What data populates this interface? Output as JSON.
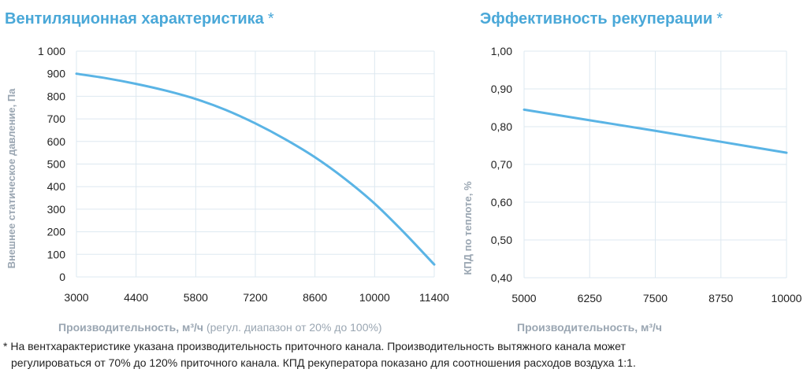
{
  "charts": {
    "left": {
      "title": "Вентиляционная характеристика",
      "asterisk": "*",
      "xlabel_bold": "Производительность",
      "xlabel_unit": ", м³/ч",
      "xlabel_note": " (регул. диапазон от 20% до 100%)",
      "ylabel": "Внешнее статическое давление, Па"
    },
    "right": {
      "title": "Эффективность рекуперации",
      "asterisk": "*",
      "xlabel_bold": "Производительность",
      "xlabel_unit": ", м³/ч",
      "ylabel": "КПД по теплоте, %"
    }
  },
  "footnote": {
    "line1": "* На вентхарактеристике указана производительность приточного канала. Производительность вытяжного канала может",
    "line2": "регулироваться от 70% до 120% приточного канала. КПД рекуператора показано для соотношения расходов воздуха 1:1."
  },
  "colors": {
    "title": "#4aa8d8",
    "series": "#5ab4e5",
    "grid": "#dde8f0",
    "axis_label": "#9aa6b2"
  },
  "chart_data": [
    {
      "type": "line",
      "title": "Вентиляционная характеристика",
      "xlabel": "Производительность, м³/ч (регул. диапазон от 20% до 100%)",
      "ylabel": "Внешнее статическое давление, Па",
      "xlim": [
        3000,
        11400
      ],
      "ylim": [
        0,
        1000
      ],
      "x_ticks": [
        3000,
        4400,
        5800,
        7200,
        8600,
        10000,
        11400
      ],
      "x_tick_labels": [
        "3000",
        "4400",
        "5800",
        "7200",
        "8600",
        "10000",
        "11400"
      ],
      "y_ticks": [
        0,
        100,
        200,
        300,
        400,
        500,
        600,
        700,
        800,
        900,
        1000
      ],
      "y_tick_labels": [
        "0",
        "100",
        "200",
        "300",
        "400",
        "500",
        "600",
        "700",
        "800",
        "900",
        "1 000"
      ],
      "grid": true,
      "series": [
        {
          "x": [
            3000,
            3700,
            4400,
            5100,
            5800,
            6500,
            7200,
            7900,
            8600,
            9300,
            10000,
            10700,
            11400
          ],
          "y": [
            900,
            880,
            855,
            825,
            788,
            740,
            680,
            610,
            530,
            435,
            325,
            195,
            55
          ]
        }
      ]
    },
    {
      "type": "line",
      "title": "Эффективность рекуперации",
      "xlabel": "Производительность, м³/ч",
      "ylabel": "КПД по теплоте, %",
      "xlim": [
        5000,
        10000
      ],
      "ylim": [
        0.4,
        1.0
      ],
      "x_ticks": [
        5000,
        6250,
        7500,
        8750,
        10000
      ],
      "x_tick_labels": [
        "5000",
        "6250",
        "7500",
        "8750",
        "10000"
      ],
      "y_ticks": [
        0.4,
        0.5,
        0.6,
        0.7,
        0.8,
        0.9,
        1.0
      ],
      "y_tick_labels": [
        "0,40",
        "0,50",
        "0,60",
        "0,70",
        "0,80",
        "0,90",
        "1,00"
      ],
      "grid": true,
      "series": [
        {
          "x": [
            5000,
            6250,
            7500,
            8750,
            10000
          ],
          "y": [
            0.845,
            0.817,
            0.789,
            0.76,
            0.731
          ]
        }
      ]
    }
  ]
}
